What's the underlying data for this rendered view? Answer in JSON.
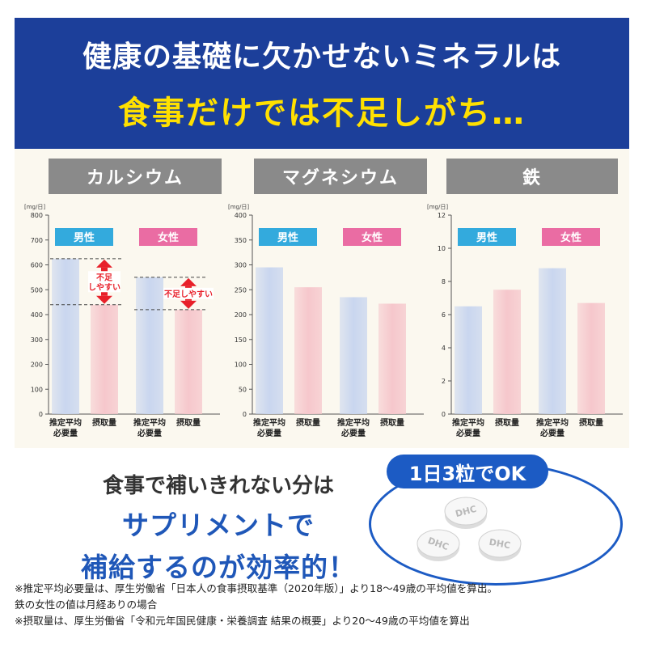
{
  "header": {
    "line1": "健康の基礎に欠かせないミネラルは",
    "line2": "食事だけでは不足しがち…"
  },
  "colors": {
    "banner": "#1c3f9a",
    "banner_highlight": "#ffe000",
    "male_bar": "#c9d6ef",
    "female_bar": "#f6c7cc",
    "male_label_bg": "#33aadd",
    "female_label_bg": "#ea6ca3",
    "accent_blue": "#1f57b8",
    "arrow_red": "#e8202a"
  },
  "legend": {
    "male": "男性",
    "female": "女性"
  },
  "x_labels": {
    "recommended_line1": "推定平均",
    "recommended_line2": "必要量",
    "intake": "摂取量"
  },
  "chart_data": [
    {
      "type": "bar",
      "title": "カルシウム",
      "unit": "[mg/日]",
      "ylim": [
        0,
        800
      ],
      "yticks": [
        0,
        100,
        200,
        300,
        400,
        500,
        600,
        700,
        800
      ],
      "categories": [
        "推定平均必要量",
        "摂取量",
        "推定平均必要量",
        "摂取量"
      ],
      "groups": [
        "男性",
        "男性",
        "女性",
        "女性"
      ],
      "values": [
        625,
        440,
        550,
        420
      ],
      "annotations": [
        {
          "group": "男性",
          "text_lines": [
            "不足",
            "しやすい"
          ]
        },
        {
          "group": "女性",
          "text_lines": [
            "不足しやすい"
          ]
        }
      ]
    },
    {
      "type": "bar",
      "title": "マグネシウム",
      "unit": "[mg/日]",
      "ylim": [
        0,
        400
      ],
      "yticks": [
        0,
        50,
        100,
        150,
        200,
        250,
        300,
        350,
        400
      ],
      "categories": [
        "推定平均必要量",
        "摂取量",
        "推定平均必要量",
        "摂取量"
      ],
      "groups": [
        "男性",
        "男性",
        "女性",
        "女性"
      ],
      "values": [
        295,
        255,
        235,
        222
      ]
    },
    {
      "type": "bar",
      "title": "鉄",
      "unit": "[mg/日]",
      "ylim": [
        0,
        12
      ],
      "yticks": [
        0,
        2,
        4,
        6,
        8,
        10,
        12
      ],
      "categories": [
        "推定平均必要量",
        "摂取量",
        "推定平均必要量",
        "摂取量"
      ],
      "groups": [
        "男性",
        "男性",
        "女性",
        "女性"
      ],
      "values": [
        6.5,
        7.5,
        8.8,
        6.7
      ]
    }
  ],
  "message": {
    "line1": "食事で補いきれない分は",
    "line2": "サプリメントで",
    "line3": "補給するのが効率的！"
  },
  "dose_badge": "1日3粒でOK",
  "tablet_mark": "DHC",
  "notes": [
    "※推定平均必要量は、厚生労働省「日本人の食事摂取基準（2020年版）」より18〜49歳の平均値を算出。",
    "鉄の女性の値は月経ありの場合",
    "※摂取量は、厚生労働省「令和元年国民健康・栄養調査 結果の概要」より20〜49歳の平均値を算出"
  ]
}
